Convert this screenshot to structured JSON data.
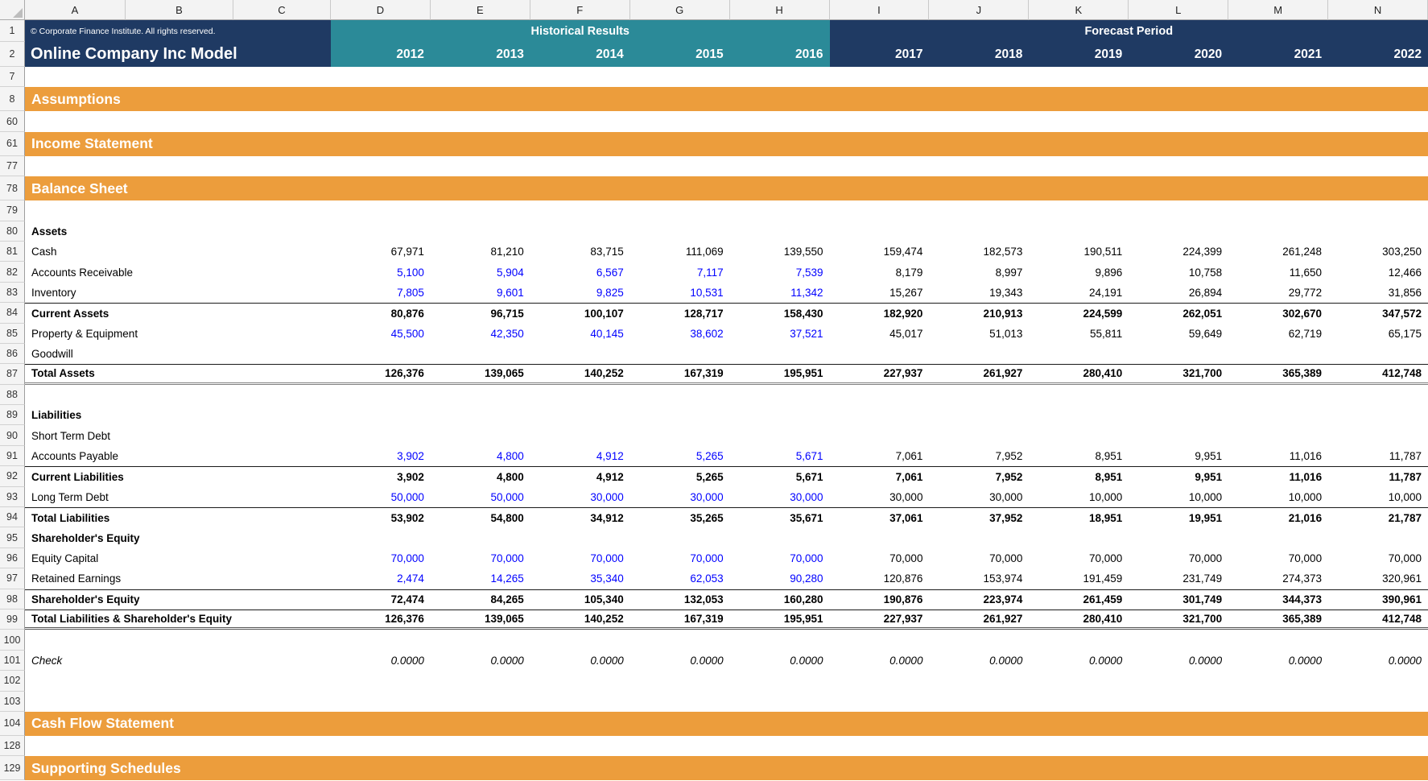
{
  "colors": {
    "navy": "#1F3A63",
    "teal": "#2B8A98",
    "orange": "#EC9D3C",
    "input_blue": "#0000FF",
    "header_bg": "#F3F3F3"
  },
  "sheet": {
    "copyright": "© Corporate Finance Institute. All rights reserved.",
    "title": "Online Company Inc Model",
    "historical_label": "Historical Results",
    "forecast_label": "Forecast Period",
    "historical_years": [
      "2012",
      "2013",
      "2014",
      "2015",
      "2016"
    ],
    "forecast_years": [
      "2017",
      "2018",
      "2019",
      "2020",
      "2021",
      "2022"
    ],
    "column_letters": [
      "A",
      "B",
      "C",
      "D",
      "E",
      "F",
      "G",
      "H",
      "I",
      "J",
      "K",
      "L",
      "M",
      "N"
    ],
    "value_columns": [
      "D",
      "E",
      "F",
      "G",
      "H",
      "I",
      "J",
      "K",
      "L",
      "M",
      "N"
    ],
    "header_rows": [
      {
        "num": "1"
      },
      {
        "num": "2"
      }
    ],
    "rows": [
      {
        "num": "7",
        "type": "blank"
      },
      {
        "num": "8",
        "type": "section",
        "label": "Assumptions"
      },
      {
        "num": "60",
        "type": "blank"
      },
      {
        "num": "61",
        "type": "section",
        "label": "Income Statement"
      },
      {
        "num": "77",
        "type": "blank"
      },
      {
        "num": "78",
        "type": "section",
        "label": "Balance Sheet"
      },
      {
        "num": "79",
        "type": "blank"
      },
      {
        "num": "80",
        "type": "heading",
        "label": "Assets",
        "bold": true
      },
      {
        "num": "81",
        "type": "data",
        "label": "Cash",
        "histColor": "black",
        "hist": [
          "67,971",
          "81,210",
          "83,715",
          "111,069",
          "139,550"
        ],
        "fcst": [
          "159,474",
          "182,573",
          "190,511",
          "224,399",
          "261,248",
          "303,250"
        ]
      },
      {
        "num": "82",
        "type": "data",
        "label": "Accounts Receivable",
        "histColor": "blue",
        "hist": [
          "5,100",
          "5,904",
          "6,567",
          "7,117",
          "7,539"
        ],
        "fcst": [
          "8,179",
          "8,997",
          "9,896",
          "10,758",
          "11,650",
          "12,466"
        ]
      },
      {
        "num": "83",
        "type": "data",
        "label": "Inventory",
        "histColor": "blue",
        "hist": [
          "7,805",
          "9,601",
          "9,825",
          "10,531",
          "11,342"
        ],
        "fcst": [
          "15,267",
          "19,343",
          "24,191",
          "26,894",
          "29,772",
          "31,856"
        ]
      },
      {
        "num": "84",
        "type": "data",
        "label": "Current Assets",
        "bold": true,
        "borderTop": true,
        "hist": [
          "80,876",
          "96,715",
          "100,107",
          "128,717",
          "158,430"
        ],
        "fcst": [
          "182,920",
          "210,913",
          "224,599",
          "262,051",
          "302,670",
          "347,572"
        ]
      },
      {
        "num": "85",
        "type": "data",
        "label": "Property & Equipment",
        "histColor": "blue",
        "hist": [
          "45,500",
          "42,350",
          "40,145",
          "38,602",
          "37,521"
        ],
        "fcst": [
          "45,017",
          "51,013",
          "55,811",
          "59,649",
          "62,719",
          "65,175"
        ]
      },
      {
        "num": "86",
        "type": "data",
        "label": "Goodwill",
        "hist": [
          "",
          "",
          "",
          "",
          ""
        ],
        "fcst": [
          "",
          "",
          "",
          "",
          "",
          ""
        ]
      },
      {
        "num": "87",
        "type": "data",
        "label": "Total Assets",
        "bold": true,
        "borderTop": true,
        "borderBottom": "double",
        "hist": [
          "126,376",
          "139,065",
          "140,252",
          "167,319",
          "195,951"
        ],
        "fcst": [
          "227,937",
          "261,927",
          "280,410",
          "321,700",
          "365,389",
          "412,748"
        ]
      },
      {
        "num": "88",
        "type": "blank"
      },
      {
        "num": "89",
        "type": "heading",
        "label": "Liabilities",
        "bold": true
      },
      {
        "num": "90",
        "type": "data",
        "label": "Short Term Debt",
        "hist": [
          "",
          "",
          "",
          "",
          ""
        ],
        "fcst": [
          "",
          "",
          "",
          "",
          "",
          ""
        ]
      },
      {
        "num": "91",
        "type": "data",
        "label": "Accounts Payable",
        "histColor": "blue",
        "hist": [
          "3,902",
          "4,800",
          "4,912",
          "5,265",
          "5,671"
        ],
        "fcst": [
          "7,061",
          "7,952",
          "8,951",
          "9,951",
          "11,016",
          "11,787"
        ]
      },
      {
        "num": "92",
        "type": "data",
        "label": "Current Liabilities",
        "bold": true,
        "borderTop": true,
        "hist": [
          "3,902",
          "4,800",
          "4,912",
          "5,265",
          "5,671"
        ],
        "fcst": [
          "7,061",
          "7,952",
          "8,951",
          "9,951",
          "11,016",
          "11,787"
        ]
      },
      {
        "num": "93",
        "type": "data",
        "label": "Long Term Debt",
        "histColor": "blue",
        "hist": [
          "50,000",
          "50,000",
          "30,000",
          "30,000",
          "30,000"
        ],
        "fcst": [
          "30,000",
          "30,000",
          "10,000",
          "10,000",
          "10,000",
          "10,000"
        ]
      },
      {
        "num": "94",
        "type": "data",
        "label": "Total Liabilities",
        "bold": true,
        "borderTop": true,
        "hist": [
          "53,902",
          "54,800",
          "34,912",
          "35,265",
          "35,671"
        ],
        "fcst": [
          "37,061",
          "37,952",
          "18,951",
          "19,951",
          "21,016",
          "21,787"
        ]
      },
      {
        "num": "95",
        "type": "heading",
        "label": "Shareholder's Equity",
        "bold": true
      },
      {
        "num": "96",
        "type": "data",
        "label": "Equity Capital",
        "histColor": "blue",
        "hist": [
          "70,000",
          "70,000",
          "70,000",
          "70,000",
          "70,000"
        ],
        "fcst": [
          "70,000",
          "70,000",
          "70,000",
          "70,000",
          "70,000",
          "70,000"
        ]
      },
      {
        "num": "97",
        "type": "data",
        "label": "Retained Earnings",
        "histColor": "blue",
        "hist": [
          "2,474",
          "14,265",
          "35,340",
          "62,053",
          "90,280"
        ],
        "fcst": [
          "120,876",
          "153,974",
          "191,459",
          "231,749",
          "274,373",
          "320,961"
        ]
      },
      {
        "num": "98",
        "type": "data",
        "label": "Shareholder's Equity",
        "bold": true,
        "borderTop": true,
        "hist": [
          "72,474",
          "84,265",
          "105,340",
          "132,053",
          "160,280"
        ],
        "fcst": [
          "190,876",
          "223,974",
          "261,459",
          "301,749",
          "344,373",
          "390,961"
        ]
      },
      {
        "num": "99",
        "type": "data",
        "label": "Total Liabilities & Shareholder's Equity",
        "bold": true,
        "borderTop": true,
        "borderBottom": "double-strong",
        "hist": [
          "126,376",
          "139,065",
          "140,252",
          "167,319",
          "195,951"
        ],
        "fcst": [
          "227,937",
          "261,927",
          "280,410",
          "321,700",
          "365,389",
          "412,748"
        ]
      },
      {
        "num": "100",
        "type": "blank"
      },
      {
        "num": "101",
        "type": "data",
        "label": "Check",
        "italic": true,
        "hist": [
          "0.0000",
          "0.0000",
          "0.0000",
          "0.0000",
          "0.0000"
        ],
        "fcst": [
          "0.0000",
          "0.0000",
          "0.0000",
          "0.0000",
          "0.0000",
          "0.0000"
        ]
      },
      {
        "num": "102",
        "type": "blank"
      },
      {
        "num": "103",
        "type": "blank"
      },
      {
        "num": "104",
        "type": "section",
        "label": "Cash Flow Statement"
      },
      {
        "num": "128",
        "type": "blank"
      },
      {
        "num": "129",
        "type": "section",
        "label": "Supporting Schedules"
      }
    ]
  }
}
